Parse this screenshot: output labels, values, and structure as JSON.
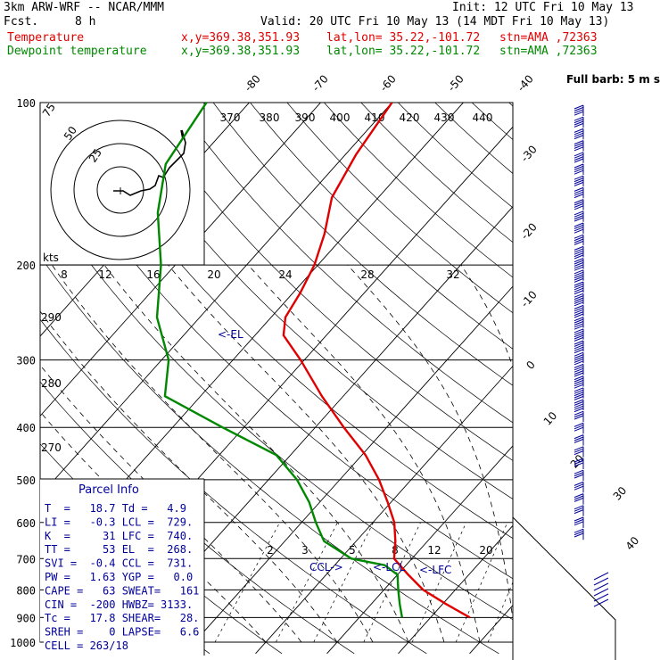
{
  "header": {
    "model": "3km ARW-WRF -- NCAR/MMM",
    "init": "Init: 12 UTC Fri 10 May 13",
    "fcst_label": "Fcst.",
    "fcst_value": "8 h",
    "valid": "Valid: 20 UTC Fri 10 May 13 (14 MDT Fri 10 May 13)",
    "temp_label": "Temperature",
    "dew_label": "Dewpoint temperature",
    "xy": "x,y=369.38,351.93",
    "latlon": "lat,lon= 35.22,-101.72",
    "stn": "stn=AMA ,72363"
  },
  "colors": {
    "temperature": "#e00000",
    "dewpoint": "#008800",
    "info": "#000099",
    "barb": "#000099"
  },
  "chart_data": {
    "type": "line",
    "title": "",
    "xlabel": "",
    "ylabel": "",
    "pressure_axis_labels": [
      "100",
      "200",
      "300",
      "400",
      "500",
      "600",
      "700",
      "800",
      "900",
      "1000"
    ],
    "pressure_levels": [
      100,
      200,
      300,
      400,
      500,
      600,
      700,
      800,
      900,
      1000
    ],
    "ylim": [
      1000,
      100
    ],
    "isotherm_labels": [
      "-80",
      "-70",
      "-60",
      "-50",
      "-40",
      "-30",
      "-20",
      "-10",
      "0",
      "10",
      "20",
      "30",
      "40"
    ],
    "theta_labels": [
      "370",
      "380",
      "390",
      "400",
      "410",
      "420",
      "430",
      "440"
    ],
    "mixing_ratio_upper_labels": [
      "8",
      "12",
      "16",
      "20",
      "24",
      "28",
      "32"
    ],
    "mixing_ratio_lower_labels": [
      "2",
      "3",
      "5",
      "8",
      "12",
      "20"
    ],
    "dry_adiabat_left_labels": [
      "290",
      "280",
      "270"
    ],
    "hodograph": {
      "units_label": "kts",
      "ring_labels": [
        "75",
        "50",
        "25"
      ],
      "center_symbol": "+"
    },
    "wind_barb_label": "Full barb: 5 m s",
    "level_markers": [
      "<-EL",
      "CCL->",
      "<-LCL",
      "<-LFC"
    ],
    "series": [
      {
        "name": "Temperature",
        "points": [
          [
            900,
            15.5
          ],
          [
            850,
            10.5
          ],
          [
            800,
            5.5
          ],
          [
            750,
            1.5
          ],
          [
            700,
            -2.5
          ],
          [
            650,
            -4.5
          ],
          [
            600,
            -7.0
          ],
          [
            550,
            -10.5
          ],
          [
            500,
            -14.5
          ],
          [
            450,
            -19.5
          ],
          [
            400,
            -26.0
          ],
          [
            350,
            -33.0
          ],
          [
            300,
            -40.5
          ],
          [
            270,
            -46.0
          ],
          [
            250,
            -48.0
          ],
          [
            225,
            -49.0
          ],
          [
            200,
            -50.5
          ],
          [
            175,
            -53.0
          ],
          [
            150,
            -56.5
          ],
          [
            125,
            -58.5
          ],
          [
            100,
            -60.0
          ]
        ]
      },
      {
        "name": "Dewpoint temperature",
        "points": [
          [
            900,
            6.0
          ],
          [
            850,
            4.0
          ],
          [
            800,
            2.0
          ],
          [
            750,
            0.0
          ],
          [
            720,
            -3.0
          ],
          [
            700,
            -8.5
          ],
          [
            650,
            -14.5
          ],
          [
            600,
            -18.0
          ],
          [
            550,
            -21.5
          ],
          [
            500,
            -26.0
          ],
          [
            450,
            -32.0
          ],
          [
            400,
            -43.0
          ],
          [
            350,
            -55.0
          ],
          [
            300,
            -59.0
          ],
          [
            250,
            -66.0
          ],
          [
            200,
            -72.0
          ],
          [
            160,
            -79.0
          ],
          [
            130,
            -84.0
          ],
          [
            100,
            -86.0
          ]
        ]
      }
    ]
  },
  "parcel_info": {
    "title": "Parcel Info",
    "rows": [
      "T  =   18.7 Td =   4.9",
      "LI =   -0.3 LCL =  729.",
      "K  =     31 LFC =  740.",
      "TT =     53 EL  =  268.",
      "SVI =  -0.4 CCL =  731.",
      "PW =   1.63 YGP =   0.0",
      "CAPE =   63 SWEAT=   161",
      "CIN =  -200 HWBZ= 3133.",
      "Tc =   17.8 SHEAR=   28.",
      "SREH =    0 LAPSE=   6.6",
      "CELL = 263/18"
    ]
  }
}
